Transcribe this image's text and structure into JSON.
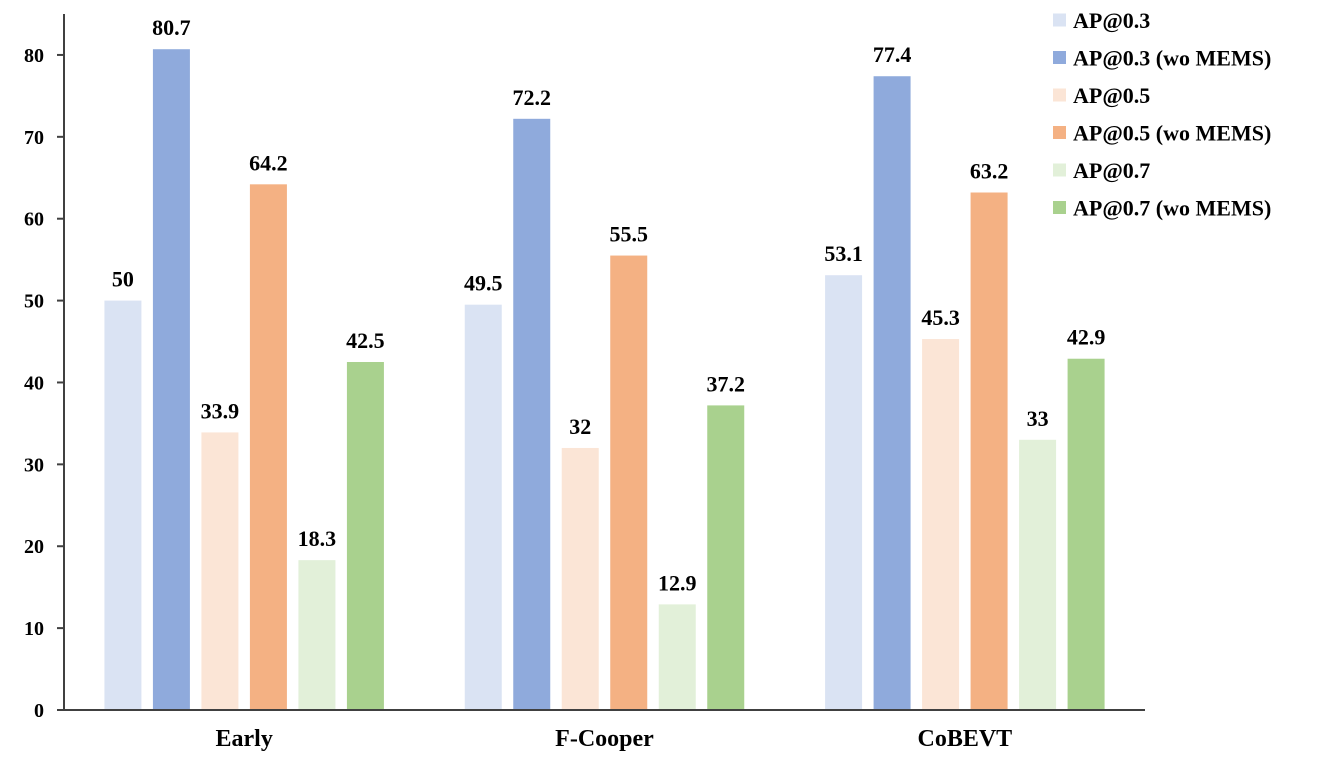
{
  "chart_data": {
    "type": "bar",
    "title": "",
    "xlabel": "",
    "ylabel": "",
    "ylim": [
      0,
      85
    ],
    "yticks": [
      0,
      10,
      20,
      30,
      40,
      50,
      60,
      70,
      80
    ],
    "grid": false,
    "legend_position": "top-right",
    "categories": [
      "Early",
      "F-Cooper",
      "CoBEVT"
    ],
    "series": [
      {
        "name": "AP@0.3",
        "color": "#dae3f3",
        "values": [
          50,
          49.5,
          53.1
        ],
        "labels": [
          "50",
          "49.5",
          "53.1"
        ]
      },
      {
        "name": "AP@0.3 (wo MEMS)",
        "color": "#8faadc",
        "values": [
          80.7,
          72.2,
          77.4
        ],
        "labels": [
          "80.7",
          "72.2",
          "77.4"
        ]
      },
      {
        "name": "AP@0.5",
        "color": "#fbe5d6",
        "values": [
          33.9,
          32,
          45.3
        ],
        "labels": [
          "33.9",
          "32",
          "45.3"
        ]
      },
      {
        "name": "AP@0.5 (wo MEMS)",
        "color": "#f4b183",
        "values": [
          64.2,
          55.5,
          63.2
        ],
        "labels": [
          "64.2",
          "55.5",
          "63.2"
        ]
      },
      {
        "name": "AP@0.7",
        "color": "#e2f0d9",
        "values": [
          18.3,
          12.9,
          33
        ],
        "labels": [
          "18.3",
          "12.9",
          "33"
        ]
      },
      {
        "name": "AP@0.7 (wo MEMS)",
        "color": "#a9d18e",
        "values": [
          42.5,
          37.2,
          42.9
        ],
        "labels": [
          "42.5",
          "37.2",
          "42.9"
        ]
      }
    ]
  }
}
